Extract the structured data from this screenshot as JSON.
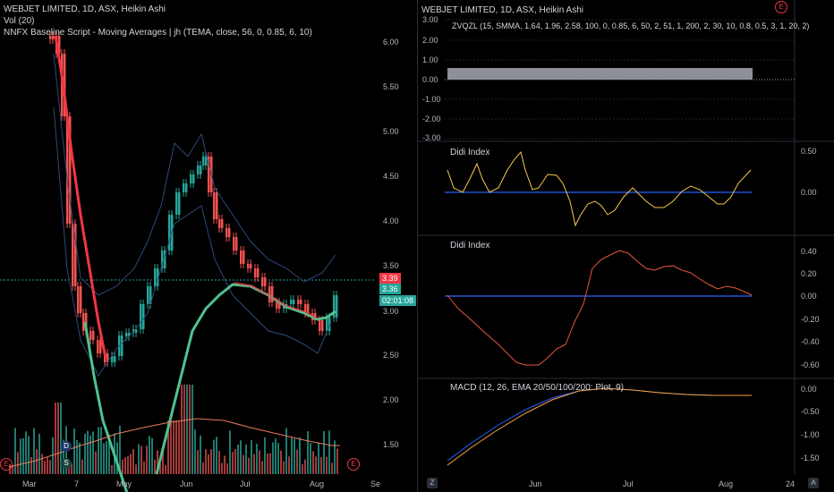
{
  "left": {
    "title": "WEBJET LIMITED, 1D, ASX, Heikin Ashi",
    "vol": "Vol (20)",
    "baseline": "NNFX Baseline Script - Moving Averages | jh (TEMA, close, 56, 0, 0.85, 6, 10)",
    "price_ticks": [
      "6.00",
      "5.50",
      "5.00",
      "4.50",
      "4.00",
      "3.50",
      "3.00",
      "2.50",
      "2.00",
      "1.50"
    ],
    "x_ticks": [
      "Mar",
      "7",
      "May",
      "Jun",
      "Jul",
      "Aug",
      "Se"
    ],
    "price_badges": {
      "p1": "3.39",
      "p2": "3.36",
      "timer": "02:01:08"
    },
    "markers": {
      "d": "D",
      "s": "S",
      "e1": "E",
      "e2": "E"
    }
  },
  "right": {
    "zvqzl": {
      "title": "WEBJET LIMITED, 1D, ASX, Heikin Ashi",
      "label": "ZVQZL (15, SMMA, 1.64, 1.96, 2.58, 100, 0, 0.85, 6, 50, 2, 51, 1, 200, 2, 30, 10, 0.8, 0.5, 3, 1, 20, 2)",
      "ticks": [
        "3.00",
        "2.00",
        "1.00",
        "0.00",
        "-1.00",
        "-2.00",
        "-3.00"
      ],
      "marker": "E"
    },
    "didi1": {
      "label": "Didi Index",
      "ticks": [
        "0.50",
        "0.00"
      ]
    },
    "didi2": {
      "label": "Didi Index",
      "ticks": [
        "0.40",
        "0.20",
        "0.00",
        "-0.20",
        "-0.40",
        "-0.60"
      ]
    },
    "macd": {
      "label": "MACD (12, 26, EMA 20/50/100/200: Plot, 9)",
      "ticks": [
        "0.00",
        "-0.50",
        "-1.00",
        "-1.50"
      ]
    },
    "x_ticks": [
      "Jun",
      "Jul",
      "Aug",
      "24"
    ],
    "corner": {
      "z": "Z",
      "a": "A"
    }
  },
  "colors": {
    "bg": "#000000",
    "up": "#26a69a",
    "down": "#ef5350",
    "blue": "#2962ff",
    "yellow": "#f7c948",
    "red_line": "#f23645",
    "green_line": "#4fc28f",
    "grid": "#2a2e39"
  }
}
